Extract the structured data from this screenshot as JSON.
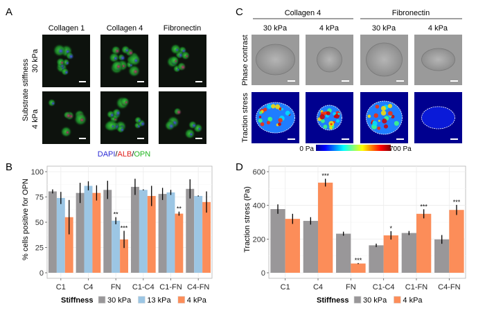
{
  "panel_labels": {
    "a": "A",
    "b": "B",
    "c": "C",
    "d": "D"
  },
  "panel_a": {
    "columns": [
      "Collagen 1",
      "Collagen 4",
      "Fibronectin"
    ],
    "row_group_label": "Substrate stiffness",
    "rows": [
      "30 kPa",
      "4 kPa"
    ],
    "stain_legend": [
      {
        "text": "DAPI",
        "color": "#2b2bd6"
      },
      {
        "text": "/",
        "color": "#000000"
      },
      {
        "text": "ALB",
        "color": "#e0201c"
      },
      {
        "text": "/",
        "color": "#000000"
      },
      {
        "text": "OPN",
        "color": "#1fb51f"
      }
    ]
  },
  "panel_c": {
    "groups": [
      "Collagen 4",
      "Fibronectin"
    ],
    "columns": [
      "30 kPa",
      "4 kPa",
      "30 kPa",
      "4 kPa"
    ],
    "rows": [
      "Phase contrast",
      "Traction stress"
    ],
    "colorbar": {
      "min_label": "0 Pa",
      "max_label": "700 Pa"
    }
  },
  "chart_data": [
    {
      "type": "bar",
      "panel": "B",
      "ylabel": "% cells positive for OPN",
      "xlabel": "",
      "ylim": [
        0,
        100
      ],
      "yticks": [
        0,
        25,
        50,
        75,
        100
      ],
      "grid": true,
      "legend": {
        "title": "Stiffness",
        "placement": "bottom"
      },
      "categories": [
        "C1",
        "C4",
        "FN",
        "C1-C4",
        "C1-FN",
        "C4-FN"
      ],
      "series": [
        {
          "name": "30 kPa",
          "color": "#999799",
          "values": [
            80.5,
            79,
            82,
            85,
            78,
            83
          ],
          "errors": [
            2,
            10,
            9,
            8,
            6,
            9.5
          ]
        },
        {
          "name": "13 kPa",
          "color": "#9cc6e4",
          "values": [
            74,
            86,
            51.5,
            82,
            79.5,
            76
          ],
          "errors": [
            6,
            4.5,
            3.5,
            0.5,
            2.5,
            0.5
          ]
        },
        {
          "name": "4 kPa",
          "color": "#fc8d59",
          "values": [
            55,
            79,
            33,
            76,
            58.5,
            70
          ],
          "errors": [
            17,
            7.5,
            8.5,
            10,
            2,
            10.5
          ]
        }
      ],
      "annotations": [
        {
          "category": "FN",
          "series": "13 kPa",
          "text": "**"
        },
        {
          "category": "FN",
          "series": "4 kPa",
          "text": "***"
        },
        {
          "category": "C1-FN",
          "series": "4 kPa",
          "text": "**"
        }
      ]
    },
    {
      "type": "bar",
      "panel": "D",
      "ylabel": "Traction stress (Pa)",
      "xlabel": "",
      "ylim": [
        0,
        620
      ],
      "yticks": [
        0,
        200,
        400,
        600
      ],
      "grid": true,
      "legend": {
        "title": "Stiffness",
        "placement": "bottom"
      },
      "categories": [
        "C1",
        "C4",
        "FN",
        "C1-C4",
        "C1-FN",
        "C4-FN"
      ],
      "series": [
        {
          "name": "30 kPa",
          "color": "#999799",
          "values": [
            378,
            308,
            232,
            163,
            236,
            198
          ],
          "errors": [
            28,
            22,
            12,
            10,
            12,
            26
          ]
        },
        {
          "name": "4 kPa",
          "color": "#fc8d59",
          "values": [
            320,
            535,
            55,
            222,
            350,
            373
          ],
          "errors": [
            30,
            23,
            3,
            25,
            27,
            30
          ]
        }
      ],
      "annotations": [
        {
          "category": "C4",
          "series": "4 kPa",
          "text": "***"
        },
        {
          "category": "FN",
          "series": "4 kPa",
          "text": "***"
        },
        {
          "category": "C1-C4",
          "series": "4 kPa",
          "text": "*"
        },
        {
          "category": "C1-FN",
          "series": "4 kPa",
          "text": "***"
        },
        {
          "category": "C4-FN",
          "series": "4 kPa",
          "text": "***"
        }
      ]
    }
  ]
}
